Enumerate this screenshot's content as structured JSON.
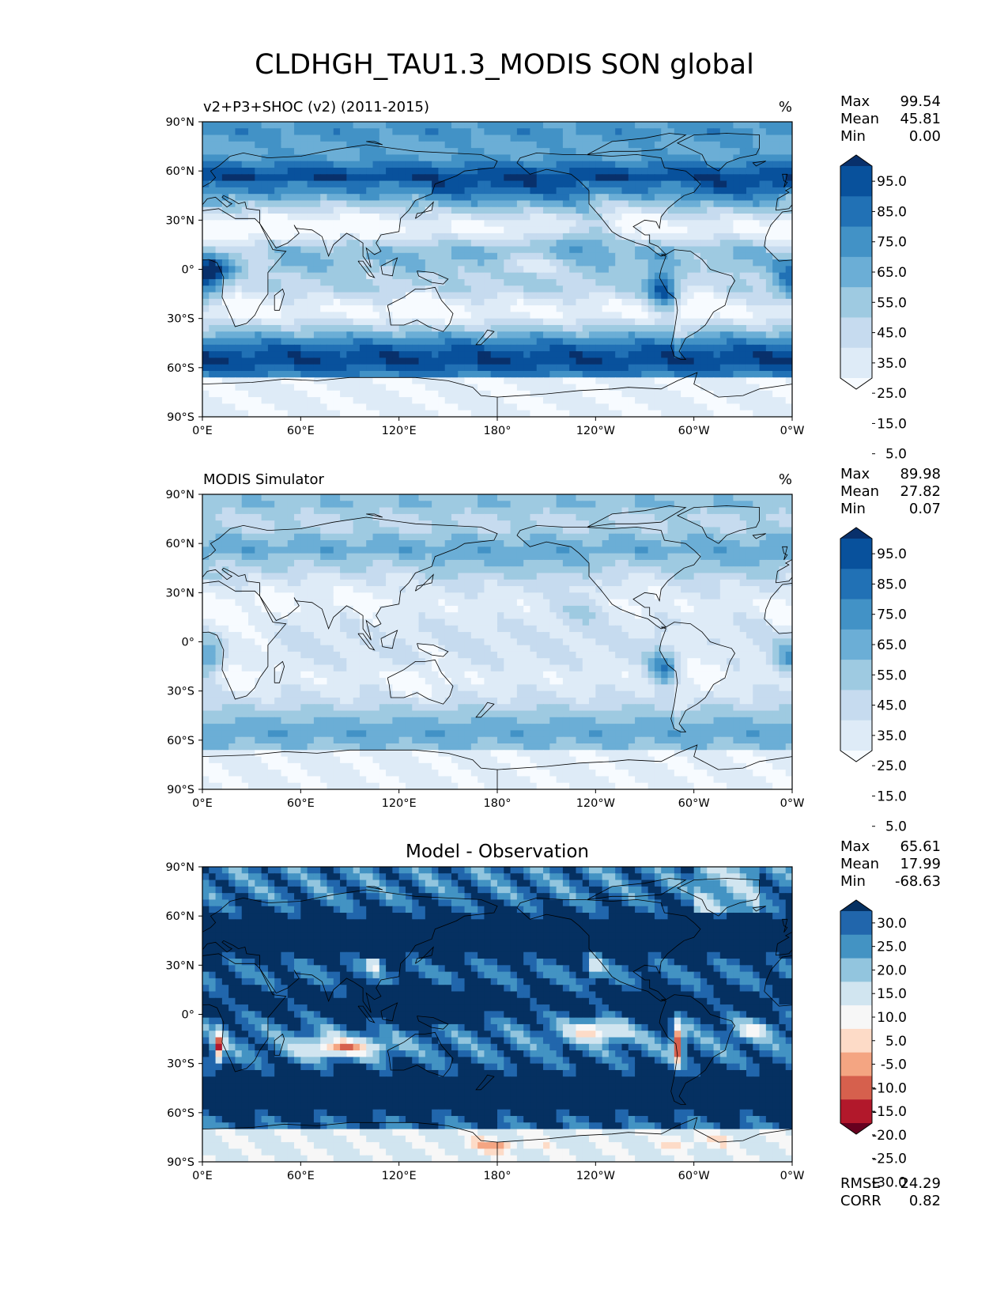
{
  "title": "CLDHGH_TAU1.3_MODIS SON global",
  "axes": {
    "lat_ticks": [
      "90°N",
      "60°N",
      "30°N",
      "0°",
      "30°S",
      "60°S",
      "90°S"
    ],
    "lon_ticks": [
      "0°E",
      "60°E",
      "120°E",
      "180°",
      "120°W",
      "60°W",
      "0°W"
    ]
  },
  "stat_labels": {
    "max": "Max",
    "mean": "Mean",
    "min": "Min",
    "rmse": "RMSE",
    "corr": "CORR"
  },
  "colors": {
    "seq": [
      "#f7fbff",
      "#deebf7",
      "#c6dbef",
      "#9ecae1",
      "#6baed6",
      "#4292c6",
      "#2171b5",
      "#08519c",
      "#08306b"
    ],
    "div": [
      "#67001f",
      "#b2182b",
      "#d6604d",
      "#f4a582",
      "#fddbc7",
      "#f7f7f7",
      "#d1e5f0",
      "#92c5de",
      "#4393c3",
      "#2166ac",
      "#053061"
    ]
  },
  "chart_data": [
    {
      "type": "heatmap",
      "title": "v2+P3+SHOC (v2) (2011-2015)",
      "units": "%",
      "stats": {
        "max": "99.54",
        "mean": "45.81",
        "min": "0.00"
      },
      "colorbar": {
        "levels": [
          "95.0",
          "85.0",
          "75.0",
          "65.0",
          "55.0",
          "45.0",
          "35.0",
          "25.0",
          "15.0",
          "5.0"
        ],
        "palette": "seq"
      },
      "xlim": [
        0,
        360
      ],
      "ylim": [
        -90,
        90
      ]
    },
    {
      "type": "heatmap",
      "title": "MODIS Simulator",
      "units": "%",
      "stats": {
        "max": "89.98",
        "mean": "27.82",
        "min": "0.07"
      },
      "colorbar": {
        "levels": [
          "95.0",
          "85.0",
          "75.0",
          "65.0",
          "55.0",
          "45.0",
          "35.0",
          "25.0",
          "15.0",
          "5.0"
        ],
        "palette": "seq"
      },
      "xlim": [
        0,
        360
      ],
      "ylim": [
        -90,
        90
      ]
    },
    {
      "type": "heatmap",
      "title": "Model - Observation",
      "units": "",
      "stats": {
        "max": "65.61",
        "mean": "17.99",
        "min": "-68.63",
        "rmse": "24.29",
        "corr": "0.82"
      },
      "colorbar": {
        "levels": [
          "30.0",
          "25.0",
          "20.0",
          "15.0",
          "10.0",
          "5.0",
          "-5.0",
          "-10.0",
          "-15.0",
          "-20.0",
          "-25.0",
          "-30.0"
        ],
        "palette": "div"
      },
      "xlim": [
        0,
        360
      ],
      "ylim": [
        -90,
        90
      ]
    }
  ]
}
